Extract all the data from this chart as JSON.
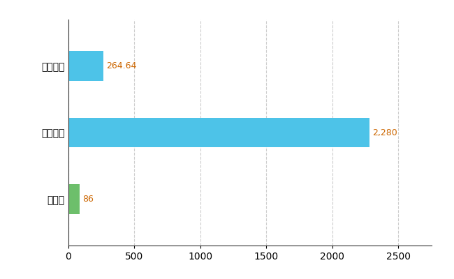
{
  "categories": [
    "栃木県",
    "全国最大",
    "全国平均"
  ],
  "values": [
    86,
    2280,
    264.64
  ],
  "bar_colors": [
    "#6dbf6b",
    "#4dc3e8",
    "#4dc3e8"
  ],
  "bar_labels": [
    "86",
    "2,280",
    "264.64"
  ],
  "xlim": [
    0,
    2750
  ],
  "xticks": [
    0,
    500,
    1000,
    1500,
    2000,
    2500
  ],
  "grid_color": "#cccccc",
  "bg_color": "#ffffff",
  "bar_height": 0.45,
  "label_color": "#cc6600",
  "label_fontsize": 9,
  "tick_fontsize": 10
}
